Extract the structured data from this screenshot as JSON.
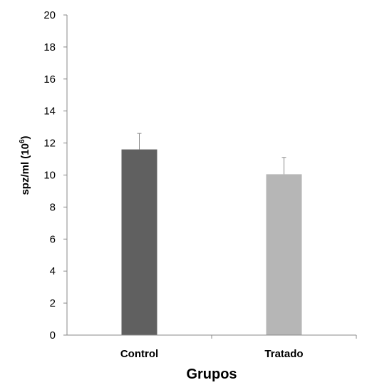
{
  "chart_data": {
    "type": "bar",
    "categories": [
      "Control",
      "Tratado"
    ],
    "values": [
      11.6,
      10.05
    ],
    "errors": [
      1.0,
      1.05
    ],
    "bar_colors": [
      "#606060",
      "#b6b6b6"
    ],
    "xlabel": "Grupos",
    "ylabel_main": "spz/ml (10",
    "ylabel_sup": "6",
    "ylabel_close": ")",
    "ylim": [
      0,
      20
    ],
    "yticks": [
      0,
      2,
      4,
      6,
      8,
      10,
      12,
      14,
      16,
      18,
      20
    ],
    "grid": false,
    "legend": "none"
  }
}
